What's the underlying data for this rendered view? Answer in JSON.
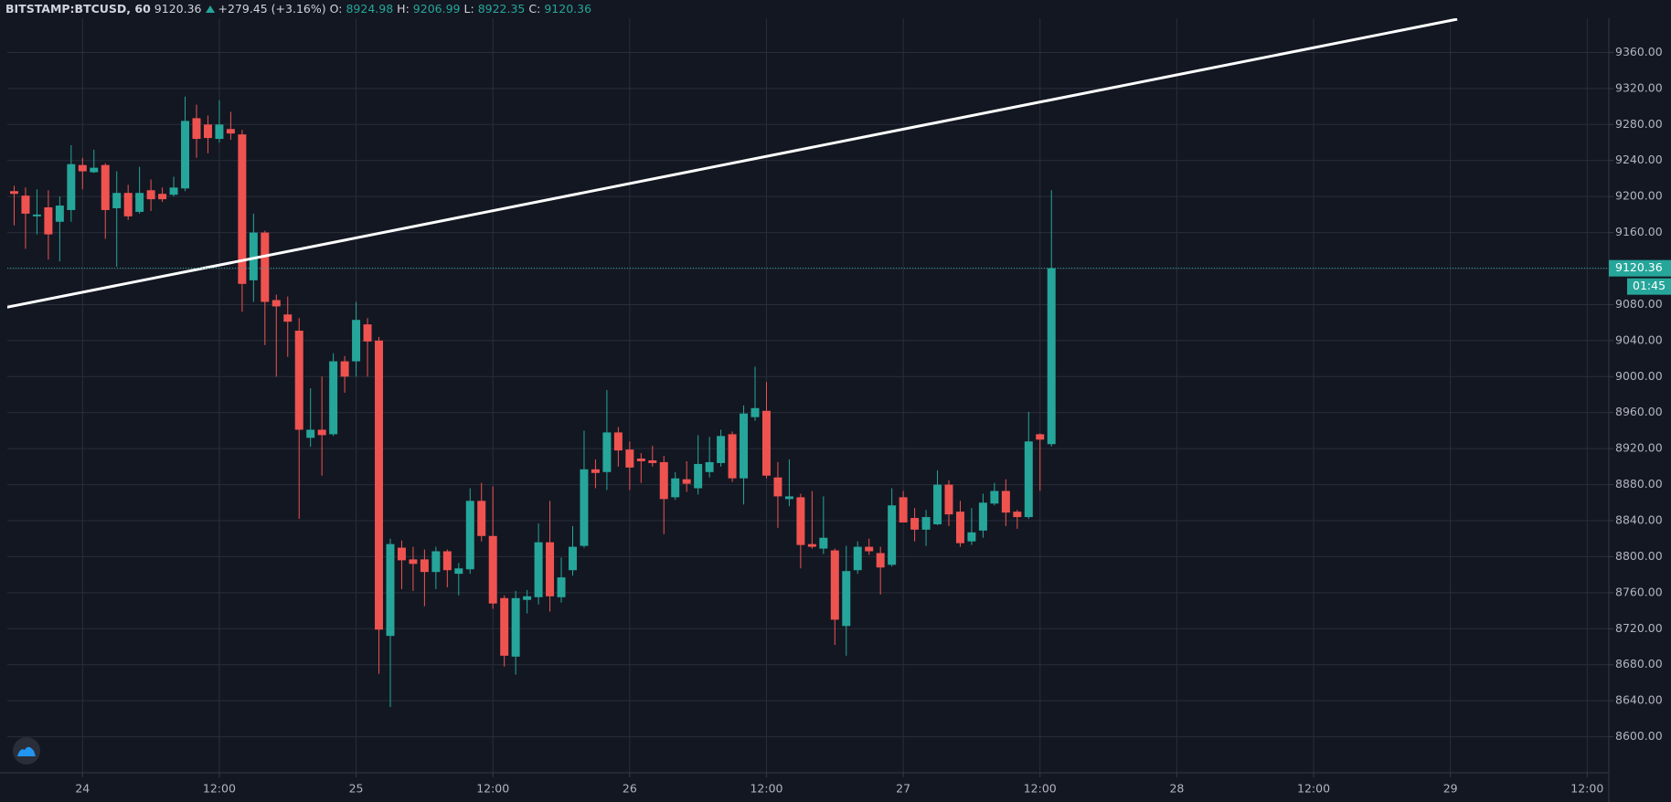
{
  "chart_data": {
    "type": "candlestick",
    "title": "BITSTAMP:BTCUSD, 60",
    "change": "+279.45 (+3.16%)",
    "ohlc_labels": [
      "O:",
      "H:",
      "L:",
      "C:"
    ],
    "countdown": "01:45",
    "up_color": "#26a69a",
    "down_color": "#ef5350",
    "grid": true,
    "xlim": [
      -0.6,
      139.9
    ],
    "ylim": [
      8560,
      9398
    ],
    "xticks": [
      {
        "value": 6,
        "label": "24"
      },
      {
        "value": 18,
        "label": "12:00"
      },
      {
        "value": 30,
        "label": "25"
      },
      {
        "value": 42,
        "label": "12:00"
      },
      {
        "value": 54,
        "label": "26"
      },
      {
        "value": 66,
        "label": "12:00"
      },
      {
        "value": 78,
        "label": "27"
      },
      {
        "value": 90,
        "label": "12:00"
      },
      {
        "value": 102,
        "label": "28"
      },
      {
        "value": 114,
        "label": "12:00"
      },
      {
        "value": 126,
        "label": "29"
      },
      {
        "value": 138,
        "label": "12:00"
      }
    ],
    "yticks": [
      {
        "value": 8600,
        "label": "8600.00"
      },
      {
        "value": 8640,
        "label": "8640.00"
      },
      {
        "value": 8680,
        "label": "8680.00"
      },
      {
        "value": 8720,
        "label": "8720.00"
      },
      {
        "value": 8760,
        "label": "8760.00"
      },
      {
        "value": 8800,
        "label": "8800.00"
      },
      {
        "value": 8840,
        "label": "8840.00"
      },
      {
        "value": 8880,
        "label": "8880.00"
      },
      {
        "value": 8920,
        "label": "8920.00"
      },
      {
        "value": 8960,
        "label": "8960.00"
      },
      {
        "value": 9000,
        "label": "9000.00"
      },
      {
        "value": 9040,
        "label": "9040.00"
      },
      {
        "value": 9080,
        "label": "9080.00"
      },
      {
        "value": 9120,
        "label": "9120.00"
      },
      {
        "value": 9160,
        "label": "9160.00"
      },
      {
        "value": 9200,
        "label": "9200.00"
      },
      {
        "value": 9240,
        "label": "9240.00"
      },
      {
        "value": 9280,
        "label": "9280.00"
      },
      {
        "value": 9320,
        "label": "9320.00"
      },
      {
        "value": 9360,
        "label": "9360.00"
      }
    ],
    "trendline": {
      "color": "#ffffff",
      "x": [
        -0.65,
        126.6
      ],
      "values": [
        9077,
        9397
      ]
    },
    "ohlc": [
      [
        9206,
        9212,
        9168,
        9203
      ],
      [
        9201,
        9210,
        9142,
        9181
      ],
      [
        9178,
        9208,
        9158,
        9180
      ],
      [
        9188,
        9207,
        9130,
        9158
      ],
      [
        9172,
        9200,
        9128,
        9190
      ],
      [
        9185,
        9257,
        9172,
        9236
      ],
      [
        9235,
        9243,
        9208,
        9228
      ],
      [
        9227,
        9252,
        9226,
        9232
      ],
      [
        9235,
        9237,
        9153,
        9185
      ],
      [
        9187,
        9228,
        9122,
        9204
      ],
      [
        9204,
        9213,
        9174,
        9178
      ],
      [
        9183,
        9233,
        9181,
        9204
      ],
      [
        9207,
        9219,
        9184,
        9197
      ],
      [
        9203,
        9210,
        9194,
        9197
      ],
      [
        9202,
        9222,
        9200,
        9210
      ],
      [
        9209,
        9311,
        9206,
        9284
      ],
      [
        9287,
        9302,
        9243,
        9264
      ],
      [
        9280,
        9290,
        9248,
        9265
      ],
      [
        9264,
        9307,
        9260,
        9280
      ],
      [
        9275,
        9294,
        9263,
        9270
      ],
      [
        9269,
        9274,
        9072,
        9103
      ],
      [
        9107,
        9181,
        9083,
        9160
      ],
      [
        9160,
        9162,
        9035,
        9083
      ],
      [
        9085,
        9091,
        9000,
        9078
      ],
      [
        9069,
        9089,
        9022,
        9061
      ],
      [
        9051,
        9065,
        8842,
        8941
      ],
      [
        8932,
        8987,
        8922,
        8941
      ],
      [
        8941,
        9000,
        8890,
        8935
      ],
      [
        8936,
        9026,
        8934,
        9017
      ],
      [
        9017,
        9023,
        8982,
        9000
      ],
      [
        9017,
        9083,
        9000,
        9063
      ],
      [
        9058,
        9065,
        9000,
        9039
      ],
      [
        9040,
        9044,
        8670,
        8719
      ],
      [
        8712,
        8820,
        8633,
        8814
      ],
      [
        8810,
        8818,
        8764,
        8796
      ],
      [
        8797,
        8811,
        8762,
        8792
      ],
      [
        8797,
        8808,
        8745,
        8783
      ],
      [
        8783,
        8811,
        8764,
        8806
      ],
      [
        8806,
        8808,
        8766,
        8785
      ],
      [
        8781,
        8793,
        8757,
        8787
      ],
      [
        8786,
        8876,
        8781,
        8862
      ],
      [
        8862,
        8882,
        8817,
        8823
      ],
      [
        8823,
        8878,
        8742,
        8748
      ],
      [
        8754,
        8757,
        8678,
        8690
      ],
      [
        8689,
        8762,
        8669,
        8754
      ],
      [
        8752,
        8763,
        8737,
        8756
      ],
      [
        8755,
        8837,
        8747,
        8816
      ],
      [
        8816,
        8862,
        8739,
        8756
      ],
      [
        8755,
        8799,
        8749,
        8777
      ],
      [
        8785,
        8834,
        8779,
        8811
      ],
      [
        8812,
        8940,
        8810,
        8897
      ],
      [
        8897,
        8908,
        8876,
        8893
      ],
      [
        8894,
        8985,
        8874,
        8938
      ],
      [
        8938,
        8944,
        8900,
        8918
      ],
      [
        8919,
        8928,
        8874,
        8899
      ],
      [
        8909,
        8915,
        8882,
        8906
      ],
      [
        8907,
        8923,
        8900,
        8904
      ],
      [
        8905,
        8912,
        8825,
        8864
      ],
      [
        8866,
        8894,
        8863,
        8887
      ],
      [
        8886,
        8906,
        8872,
        8881
      ],
      [
        8876,
        8935,
        8869,
        8903
      ],
      [
        8894,
        8933,
        8888,
        8905
      ],
      [
        8904,
        8941,
        8900,
        8934
      ],
      [
        8936,
        8939,
        8883,
        8887
      ],
      [
        8887,
        8968,
        8858,
        8959
      ],
      [
        8955,
        9011,
        8951,
        8965
      ],
      [
        8962,
        8994,
        8887,
        8890
      ],
      [
        8888,
        8905,
        8832,
        8867
      ],
      [
        8864,
        8908,
        8856,
        8867
      ],
      [
        8866,
        8870,
        8787,
        8813
      ],
      [
        8814,
        8873,
        8809,
        8811
      ],
      [
        8809,
        8867,
        8803,
        8821
      ],
      [
        8807,
        8809,
        8702,
        8730
      ],
      [
        8723,
        8812,
        8690,
        8784
      ],
      [
        8785,
        8817,
        8781,
        8811
      ],
      [
        8811,
        8820,
        8802,
        8806
      ],
      [
        8804,
        8811,
        8758,
        8788
      ],
      [
        8791,
        8876,
        8789,
        8857
      ],
      [
        8866,
        8873,
        8838,
        8838
      ],
      [
        8843,
        8854,
        8817,
        8830
      ],
      [
        8830,
        8852,
        8812,
        8844
      ],
      [
        8836,
        8896,
        8835,
        8880
      ],
      [
        8880,
        8885,
        8834,
        8847
      ],
      [
        8850,
        8862,
        8811,
        8815
      ],
      [
        8817,
        8854,
        8813,
        8827
      ],
      [
        8829,
        8870,
        8821,
        8860
      ],
      [
        8859,
        8882,
        8857,
        8873
      ],
      [
        8873,
        8886,
        8834,
        8849
      ],
      [
        8850,
        8852,
        8831,
        8844
      ],
      [
        8844,
        8961,
        8842,
        8928
      ],
      [
        8936,
        8937,
        8873,
        8930
      ],
      [
        8924.98,
        9206.99,
        8922.35,
        9120.36
      ]
    ]
  }
}
